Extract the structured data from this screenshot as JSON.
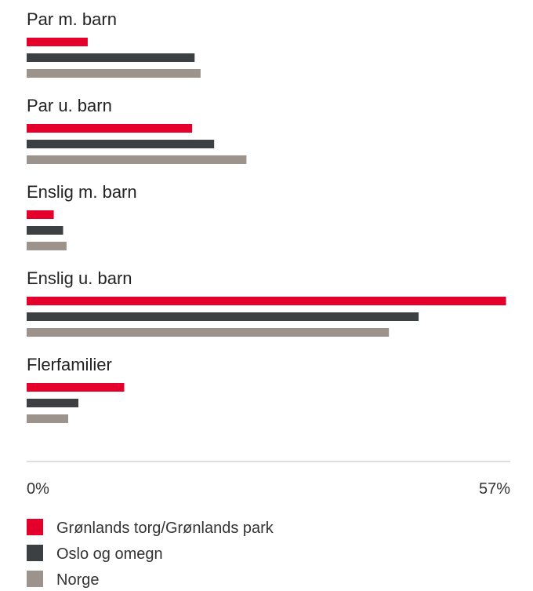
{
  "chart_data": {
    "type": "bar",
    "orientation": "horizontal",
    "categories": [
      "Par m. barn",
      "Par u. barn",
      "Enslig m. barn",
      "Enslig u. barn",
      "Flerfamilier"
    ],
    "series": [
      {
        "name": "Grønlands torg/Grønlands park",
        "color": "#e4002b",
        "values": [
          7.2,
          19.5,
          3.2,
          56.5,
          11.5
        ]
      },
      {
        "name": "Oslo og omegn",
        "color": "#3d4043",
        "values": [
          19.8,
          22.1,
          4.3,
          46.2,
          6.1
        ]
      },
      {
        "name": "Norge",
        "color": "#9b938c",
        "values": [
          20.5,
          25.9,
          4.7,
          42.7,
          4.9
        ]
      }
    ],
    "xlim": [
      0,
      57
    ],
    "x_tick_labels": [
      "0%",
      "57%"
    ],
    "legend_position": "bottom",
    "grid": false
  }
}
